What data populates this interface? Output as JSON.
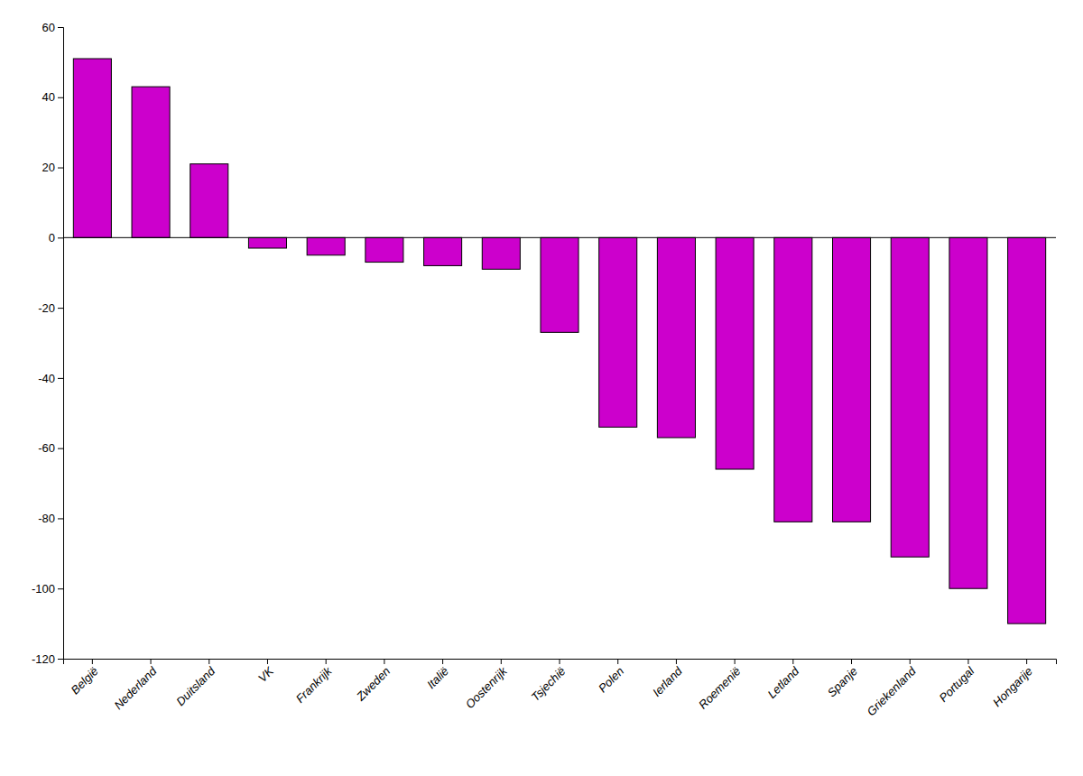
{
  "chart_data": {
    "type": "bar",
    "categories": [
      "België",
      "Nederland",
      "Duitsland",
      "VK",
      "Frankrijk",
      "Zweden",
      "Italië",
      "Oostenrijk",
      "Tsjechië",
      "Polen",
      "Ierland",
      "Roemenië",
      "Letland",
      "Spanje",
      "Griekenland",
      "Portugal",
      "Hongarije"
    ],
    "values": [
      51,
      43,
      21,
      -3,
      -5,
      -7,
      -8,
      -9,
      -27,
      -54,
      -57,
      -66,
      -81,
      -81,
      -91,
      -100,
      -110
    ],
    "color": "#CC00CC",
    "ylim": [
      -120,
      60
    ],
    "yticks": [
      -120,
      -100,
      -80,
      -60,
      -40,
      -20,
      0,
      20,
      40,
      60
    ],
    "grid": false
  }
}
